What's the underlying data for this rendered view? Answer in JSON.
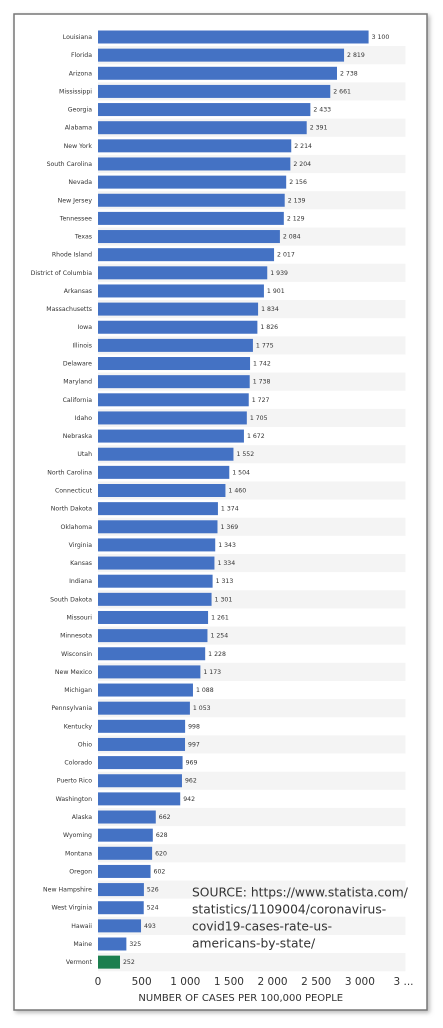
{
  "chart_data": {
    "type": "barh",
    "categories": [
      "Louisiana",
      "Florida",
      "Arizona",
      "Mississippi",
      "Georgia",
      "Alabama",
      "New York",
      "South Carolina",
      "Nevada",
      "New Jersey",
      "Tennessee",
      "Texas",
      "Rhode Island",
      "District of Columbia",
      "Arkansas",
      "Massachusetts",
      "Iowa",
      "Illinois",
      "Delaware",
      "Maryland",
      "California",
      "Idaho",
      "Nebraska",
      "Utah",
      "North Carolina",
      "Connecticut",
      "North Dakota",
      "Oklahoma",
      "Virginia",
      "Kansas",
      "Indiana",
      "South Dakota",
      "Missouri",
      "Minnesota",
      "Wisconsin",
      "New Mexico",
      "Michigan",
      "Pennsylvania",
      "Kentucky",
      "Ohio",
      "Colorado",
      "Puerto Rico",
      "Washington",
      "Alaska",
      "Wyoming",
      "Montana",
      "Oregon",
      "New Hampshire",
      "West Virginia",
      "Hawaii",
      "Maine",
      "Vermont"
    ],
    "values": [
      3100,
      2819,
      2738,
      2661,
      2433,
      2391,
      2214,
      2204,
      2156,
      2139,
      2129,
      2084,
      2017,
      1939,
      1901,
      1834,
      1826,
      1775,
      1742,
      1738,
      1727,
      1705,
      1672,
      1552,
      1504,
      1460,
      1374,
      1369,
      1343,
      1334,
      1313,
      1301,
      1261,
      1254,
      1228,
      1173,
      1088,
      1053,
      998,
      997,
      969,
      962,
      942,
      662,
      628,
      620,
      602,
      526,
      524,
      493,
      325,
      252
    ],
    "value_labels": [
      "3 100",
      "2 819",
      "2 738",
      "2 661",
      "2 433",
      "2 391",
      "2 214",
      "2 204",
      "2 156",
      "2 139",
      "2 129",
      "2 084",
      "2 017",
      "1 939",
      "1 901",
      "1 834",
      "1 826",
      "1 775",
      "1 742",
      "1 738",
      "1 727",
      "1 705",
      "1 672",
      "1 552",
      "1 504",
      "1 460",
      "1 374",
      "1 369",
      "1 343",
      "1 334",
      "1 313",
      "1 301",
      "1 261",
      "1 254",
      "1 228",
      "1 173",
      "1 088",
      "1 053",
      "998",
      "997",
      "969",
      "962",
      "942",
      "662",
      "628",
      "620",
      "602",
      "526",
      "524",
      "493",
      "325",
      "252"
    ],
    "colors": [
      "#4472c4",
      "#4472c4",
      "#4472c4",
      "#4472c4",
      "#4472c4",
      "#4472c4",
      "#4472c4",
      "#4472c4",
      "#4472c4",
      "#4472c4",
      "#4472c4",
      "#4472c4",
      "#4472c4",
      "#4472c4",
      "#4472c4",
      "#4472c4",
      "#4472c4",
      "#4472c4",
      "#4472c4",
      "#4472c4",
      "#4472c4",
      "#4472c4",
      "#4472c4",
      "#4472c4",
      "#4472c4",
      "#4472c4",
      "#4472c4",
      "#4472c4",
      "#4472c4",
      "#4472c4",
      "#4472c4",
      "#4472c4",
      "#4472c4",
      "#4472c4",
      "#4472c4",
      "#4472c4",
      "#4472c4",
      "#4472c4",
      "#4472c4",
      "#4472c4",
      "#4472c4",
      "#4472c4",
      "#4472c4",
      "#4472c4",
      "#4472c4",
      "#4472c4",
      "#4472c4",
      "#4472c4",
      "#4472c4",
      "#4472c4",
      "#4472c4",
      "#1b7f4f"
    ],
    "xlim": [
      0,
      3500
    ],
    "xticks": [
      0,
      500,
      {
        "value": 1000,
        "label": "1 000"
      },
      {
        "value": 1500,
        "label": "1 500"
      },
      {
        "value": 2000,
        "label": "2 000"
      },
      {
        "value": 2500,
        "label": "2 500"
      },
      {
        "value": 3000,
        "label": "3 000"
      },
      {
        "value": 3500,
        "label": "3 ..."
      }
    ],
    "xlabel": "NUMBER OF CASES PER 100,000 PEOPLE",
    "annotation": [
      "SOURCE: https://www.statista.com/",
      "statistics/1109004/coronavirus-",
      "covid19-cases-rate-us-",
      "americans-by-state/"
    ],
    "grid": false
  }
}
